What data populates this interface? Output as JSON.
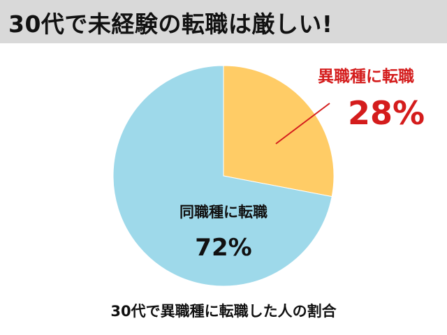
{
  "header": {
    "title": "30代で未経験の転職は厳しい!"
  },
  "chart_data": {
    "type": "pie",
    "slices": [
      {
        "label": "異職種に転職",
        "value": 28,
        "value_label": "28%",
        "color": "#ffcc66",
        "label_color": "#d41c1c"
      },
      {
        "label": "同職種に転職",
        "value": 72,
        "value_label": "72%",
        "color": "#9ed9ea",
        "label_color": "#111111"
      }
    ],
    "caption": "30代で異職種に転職した人の割合"
  }
}
